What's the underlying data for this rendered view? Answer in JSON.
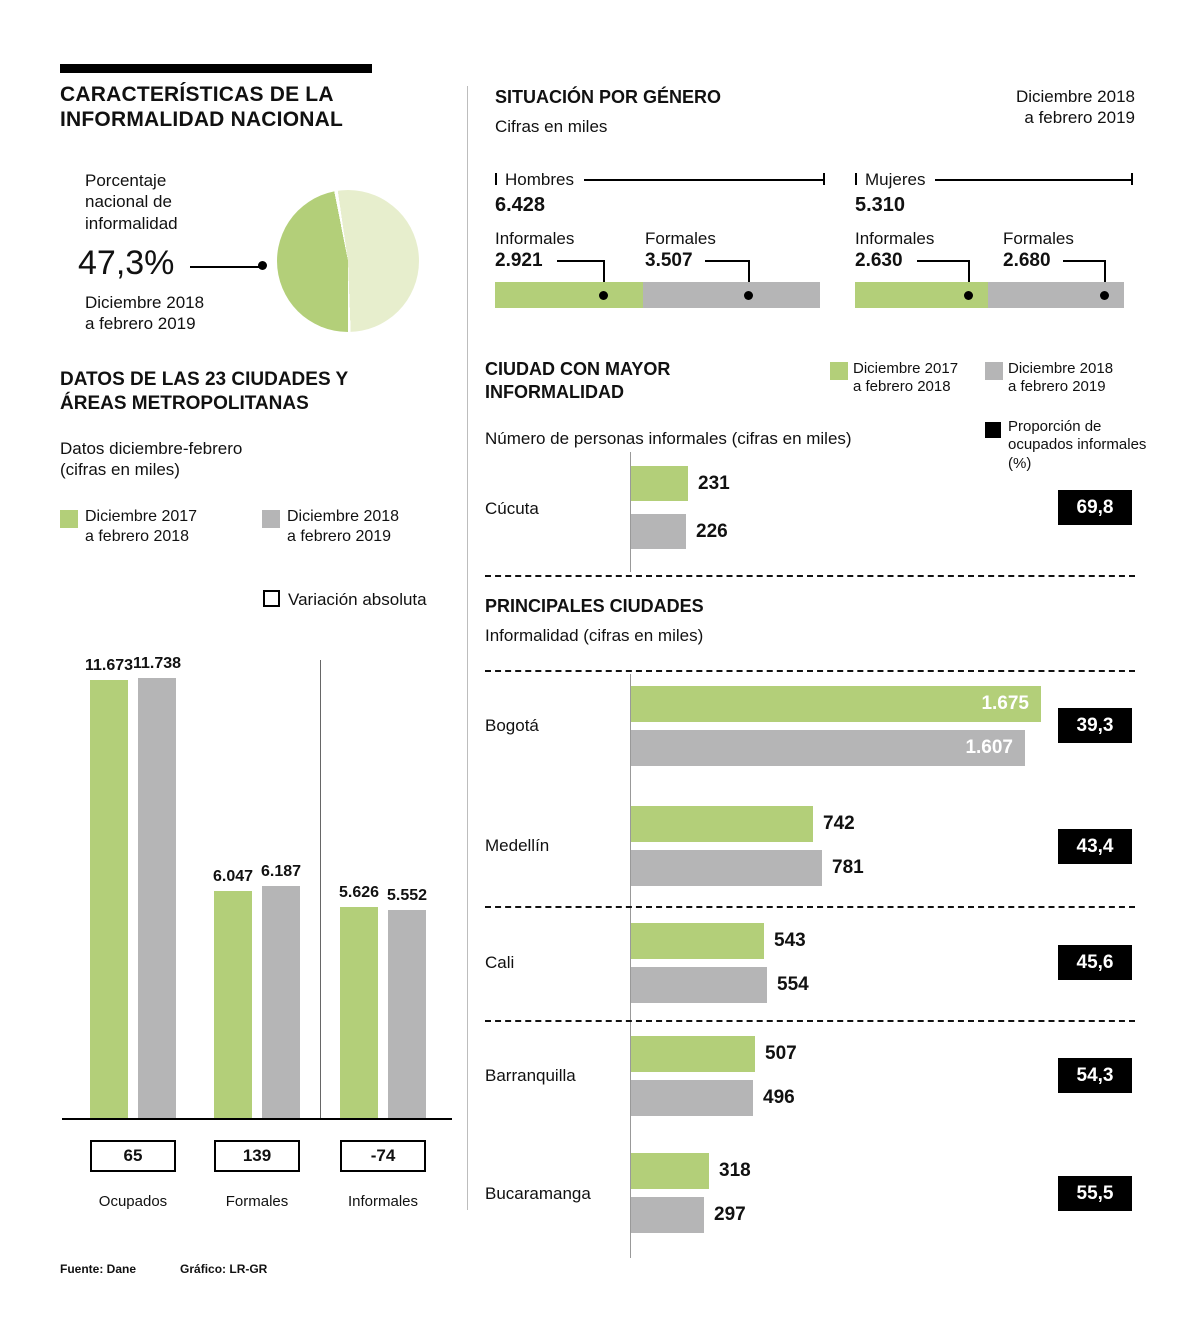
{
  "colors": {
    "green": "#b3cf79",
    "light_green": "#e7eecd",
    "gray": "#b5b5b6",
    "badge_bg": "#000000",
    "text": "#111111"
  },
  "footer": {
    "source": "Fuente: Dane",
    "credit": "Gráfico: LR-GR"
  },
  "left": {
    "title": "CARACTERÍSTICAS DE LA\nINFORMALIDAD NACIONAL",
    "pie": {
      "label": "Porcentaje\nnacional de\ninformalidad",
      "value": "47,3%",
      "percent": 47.3,
      "period": "Diciembre 2018\na febrero 2019"
    },
    "cities23": {
      "title": "DATOS DE LAS 23 CIUDADES Y\nÁREAS METROPOLITANAS",
      "subtitle": "Datos diciembre-febrero\n(cifras en miles)",
      "legend_2017": "Diciembre 2017\na febrero 2018",
      "legend_2018": "Diciembre 2018\na febrero 2019",
      "legend_variation": "Variación absoluta"
    },
    "bar_chart": {
      "groups": [
        {
          "category": "Ocupados",
          "v2017": 11673,
          "v2018": 11738,
          "label2017": "11.673",
          "label2018": "11.738",
          "variation": "65"
        },
        {
          "category": "Formales",
          "v2017": 6047,
          "v2018": 6187,
          "label2017": "6.047",
          "label2018": "6.187",
          "variation": "139"
        },
        {
          "category": "Informales",
          "v2017": 5626,
          "v2018": 5552,
          "label2017": "5.626",
          "label2018": "5.552",
          "variation": "-74"
        }
      ]
    }
  },
  "right": {
    "gender": {
      "title": "SITUACIÓN POR GÉNERO",
      "subtitle": "Cifras en miles",
      "period": "Diciembre 2018\na febrero 2019",
      "groups": [
        {
          "name": "Hombres",
          "total": "6.428",
          "informal_label": "Informales",
          "informal": "2.921",
          "informal_value": 2921,
          "formal_label": "Formales",
          "formal": "3.507",
          "formal_value": 3507
        },
        {
          "name": "Mujeres",
          "total": "5.310",
          "informal_label": "Informales",
          "informal": "2.630",
          "informal_value": 2630,
          "formal_label": "Formales",
          "formal": "2.680",
          "formal_value": 2680
        }
      ]
    },
    "top_city": {
      "title": "CIUDAD CON MAYOR\nINFORMALIDAD",
      "legend_2017": "Diciembre 2017\na febrero 2018",
      "legend_2018": "Diciembre 2018\na febrero 2019",
      "legend_proportion": "Proporción de\nocupados informales\n(%)",
      "subtitle": "Número de personas informales (cifras en miles)",
      "city": {
        "name": "Cúcuta",
        "v2017": 231,
        "v2018": 226,
        "label2017": "231",
        "label2018": "226",
        "badge": "69,8"
      }
    },
    "main_cities": {
      "title": "PRINCIPALES CIUDADES",
      "subtitle": "Informalidad (cifras en miles)",
      "cities": [
        {
          "name": "Bogotá",
          "v2017": 1675,
          "v2018": 1607,
          "label2017": "1.675",
          "label2018": "1.607",
          "badge": "39,3"
        },
        {
          "name": "Medellín",
          "v2017": 742,
          "v2018": 781,
          "label2017": "742",
          "label2018": "781",
          "badge": "43,4"
        },
        {
          "name": "Cali",
          "v2017": 543,
          "v2018": 554,
          "label2017": "543",
          "label2018": "554",
          "badge": "45,6"
        },
        {
          "name": "Barranquilla",
          "v2017": 507,
          "v2018": 496,
          "label2017": "507",
          "label2018": "496",
          "badge": "54,3"
        },
        {
          "name": "Bucaramanga",
          "v2017": 318,
          "v2018": 297,
          "label2017": "318",
          "label2018": "297",
          "badge": "55,5"
        }
      ]
    }
  },
  "chart_data": [
    {
      "type": "pie",
      "title": "Porcentaje nacional de informalidad",
      "labels": [
        "Informalidad",
        "Resto"
      ],
      "values": [
        47.3,
        52.7
      ],
      "annotation": "47,3% — Diciembre 2018 a febrero 2019"
    },
    {
      "type": "bar",
      "title": "Datos de las 23 ciudades y áreas metropolitanas, diciembre-febrero (cifras en miles)",
      "categories": [
        "Ocupados",
        "Formales",
        "Informales"
      ],
      "series": [
        {
          "name": "Diciembre 2017 a febrero 2018",
          "values": [
            11673,
            6047,
            5626
          ]
        },
        {
          "name": "Diciembre 2018 a febrero 2019",
          "values": [
            11738,
            6187,
            5552
          ]
        }
      ],
      "variacion_absoluta": [
        65,
        139,
        -74
      ],
      "ylim": [
        0,
        12000
      ],
      "grid": false,
      "legend_position": "top"
    },
    {
      "type": "bar",
      "title": "Situación por género (cifras en miles), Diciembre 2018 a febrero 2019",
      "orientation": "horizontal",
      "stacked": true,
      "categories": [
        "Hombres",
        "Mujeres"
      ],
      "totals": [
        6428,
        5310
      ],
      "series": [
        {
          "name": "Informales",
          "values": [
            2921,
            2630
          ]
        },
        {
          "name": "Formales",
          "values": [
            3507,
            2680
          ]
        }
      ]
    },
    {
      "type": "bar",
      "title": "Ciudad con mayor informalidad — Número de personas informales (cifras en miles)",
      "orientation": "horizontal",
      "categories": [
        "Cúcuta"
      ],
      "series": [
        {
          "name": "Diciembre 2017 a febrero 2018",
          "values": [
            231
          ]
        },
        {
          "name": "Diciembre 2018 a febrero 2019",
          "values": [
            226
          ]
        }
      ],
      "proporcion_ocupados_informales_pct": [
        69.8
      ]
    },
    {
      "type": "bar",
      "title": "Principales ciudades — Informalidad (cifras en miles)",
      "orientation": "horizontal",
      "categories": [
        "Bogotá",
        "Medellín",
        "Cali",
        "Barranquilla",
        "Bucaramanga"
      ],
      "series": [
        {
          "name": "Diciembre 2017 a febrero 2018",
          "values": [
            1675,
            742,
            543,
            507,
            318
          ]
        },
        {
          "name": "Diciembre 2018 a febrero 2019",
          "values": [
            1607,
            781,
            554,
            496,
            297
          ]
        }
      ],
      "proporcion_ocupados_informales_pct": [
        39.3,
        43.4,
        45.6,
        54.3,
        55.5
      ]
    }
  ]
}
